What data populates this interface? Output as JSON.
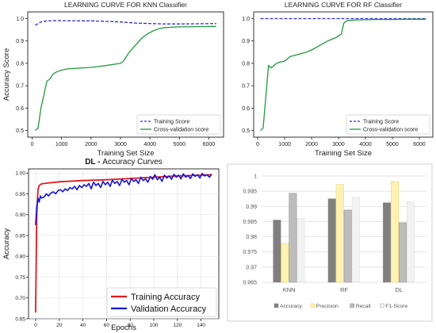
{
  "chart_data": [
    {
      "type": "line",
      "title": "LEARNING CURVE FOR KNN Classifier",
      "xlabel": "Training Set Size",
      "ylabel": "Accuracy Score",
      "xlim": [
        -150,
        6500
      ],
      "ylim": [
        0.47,
        1.03
      ],
      "xticks": [
        0,
        1000,
        2000,
        3000,
        4000,
        5000,
        6000
      ],
      "yticks": [
        0.5,
        0.6,
        0.7,
        0.8,
        0.9,
        1.0
      ],
      "ytick_labels": [
        "0.5",
        "0.6",
        "0.7",
        "0.8",
        "0.9",
        "1.0"
      ],
      "grid": false,
      "legend_position": "lower-right",
      "series": [
        {
          "name": "Training Score",
          "style": "dashed",
          "color": "#2f2fcf",
          "x": [
            100,
            300,
            500,
            800,
            1500,
            2000,
            2500,
            3000,
            3500,
            4000,
            4500,
            5000,
            5500,
            6250
          ],
          "y": [
            0.97,
            0.985,
            0.99,
            0.991,
            0.99,
            0.99,
            0.988,
            0.985,
            0.98,
            0.978,
            0.976,
            0.976,
            0.977,
            0.978
          ]
        },
        {
          "name": "Cross-validation score",
          "style": "solid",
          "color": "#1f9a3a",
          "x": [
            100,
            200,
            300,
            400,
            500,
            600,
            700,
            800,
            900,
            1000,
            1200,
            1500,
            2000,
            2500,
            3000,
            3100,
            3300,
            3500,
            3700,
            3900,
            4100,
            4300,
            4500,
            5000,
            5500,
            6250
          ],
          "y": [
            0.5,
            0.51,
            0.6,
            0.66,
            0.72,
            0.73,
            0.75,
            0.76,
            0.765,
            0.77,
            0.775,
            0.778,
            0.782,
            0.79,
            0.8,
            0.81,
            0.85,
            0.88,
            0.91,
            0.93,
            0.945,
            0.955,
            0.96,
            0.963,
            0.964,
            0.965
          ]
        }
      ]
    },
    {
      "type": "line",
      "title": "LEARNING CURVE FOR RF Classifier",
      "xlabel": "Training Set Size",
      "ylabel": "",
      "xlim": [
        -150,
        6500
      ],
      "ylim": [
        0.47,
        1.03
      ],
      "xticks": [
        0,
        1000,
        2000,
        3000,
        4000,
        5000,
        6000
      ],
      "yticks": [
        0.5,
        0.6,
        0.7,
        0.8,
        0.9,
        1.0
      ],
      "ytick_labels": [
        "0.5",
        "0.6",
        "0.7",
        "0.8",
        "0.9",
        "1.0"
      ],
      "grid": false,
      "legend_position": "lower-right",
      "series": [
        {
          "name": "Training Score",
          "style": "dashed",
          "color": "#2f2fcf",
          "x": [
            100,
            1000,
            2000,
            3000,
            4000,
            5000,
            6250
          ],
          "y": [
            1.0,
            1.0,
            1.0,
            1.0,
            1.0,
            1.0,
            1.0
          ]
        },
        {
          "name": "Cross-validation score",
          "style": "solid",
          "color": "#1f9a3a",
          "x": [
            100,
            200,
            300,
            400,
            500,
            600,
            700,
            800,
            1000,
            1200,
            1500,
            1800,
            2000,
            2300,
            2600,
            2900,
            3100,
            3200,
            3300,
            3500,
            4000,
            4500,
            5000,
            5500,
            6250
          ],
          "y": [
            0.5,
            0.51,
            0.65,
            0.79,
            0.78,
            0.79,
            0.8,
            0.805,
            0.81,
            0.83,
            0.84,
            0.85,
            0.86,
            0.88,
            0.9,
            0.915,
            0.93,
            0.98,
            0.99,
            0.993,
            0.995,
            0.996,
            0.996,
            0.997,
            0.997
          ]
        }
      ]
    },
    {
      "type": "line",
      "title_prefix": "DL -",
      "title": "Accuracy Curves",
      "xlabel": "Epochs",
      "ylabel": "Accuracy",
      "xlim": [
        -6,
        155
      ],
      "ylim": [
        0.65,
        1.01
      ],
      "xticks": [
        0,
        20,
        40,
        60,
        80,
        100,
        120,
        140
      ],
      "yticks": [
        0.65,
        0.7,
        0.75,
        0.8,
        0.85,
        0.9,
        0.95,
        1.0
      ],
      "ytick_labels": [
        "0.65",
        "0.70",
        "0.75",
        "0.80",
        "0.85",
        "0.90",
        "0.95",
        "1.00"
      ],
      "grid": true,
      "legend_position": "lower-right",
      "series": [
        {
          "name": "Training Accuracy",
          "color": "#e31a1c",
          "x": [
            0,
            1,
            2,
            3,
            5,
            10,
            20,
            40,
            60,
            80,
            100,
            120,
            140,
            149
          ],
          "y": [
            0.665,
            0.9,
            0.96,
            0.97,
            0.974,
            0.976,
            0.979,
            0.982,
            0.984,
            0.987,
            0.99,
            0.993,
            0.995,
            0.996
          ]
        },
        {
          "name": "Validation Accuracy",
          "color": "#1515d6",
          "x": [
            0,
            1,
            2,
            3,
            4,
            5,
            7,
            9,
            11,
            13,
            15,
            17,
            19,
            21,
            23,
            25,
            27,
            29,
            31,
            33,
            35,
            37,
            39,
            41,
            43,
            45,
            47,
            49,
            51,
            53,
            55,
            57,
            59,
            61,
            63,
            65,
            67,
            69,
            71,
            73,
            75,
            77,
            79,
            81,
            83,
            85,
            87,
            89,
            91,
            93,
            95,
            97,
            99,
            101,
            103,
            105,
            107,
            109,
            111,
            113,
            115,
            117,
            119,
            121,
            123,
            125,
            127,
            129,
            131,
            133,
            135,
            137,
            139,
            141,
            143,
            145,
            147,
            149
          ],
          "y": [
            0.875,
            0.92,
            0.94,
            0.93,
            0.945,
            0.94,
            0.942,
            0.95,
            0.945,
            0.952,
            0.955,
            0.95,
            0.958,
            0.96,
            0.955,
            0.962,
            0.958,
            0.965,
            0.962,
            0.968,
            0.96,
            0.97,
            0.965,
            0.972,
            0.968,
            0.975,
            0.962,
            0.978,
            0.97,
            0.975,
            0.965,
            0.98,
            0.972,
            0.978,
            0.968,
            0.983,
            0.975,
            0.98,
            0.97,
            0.985,
            0.978,
            0.982,
            0.972,
            0.987,
            0.98,
            0.984,
            0.975,
            0.99,
            0.982,
            0.986,
            0.978,
            0.992,
            0.985,
            0.996,
            0.984,
            0.99,
            0.98,
            0.995,
            0.988,
            0.993,
            0.985,
            0.997,
            0.99,
            0.995,
            0.986,
            0.998,
            0.99,
            0.994,
            0.987,
            0.998,
            0.992,
            0.996,
            0.988,
            0.999,
            0.993,
            0.996,
            0.99,
            0.997
          ]
        }
      ]
    },
    {
      "type": "bar",
      "title": "",
      "categories": [
        "KNN",
        "RF",
        "DL"
      ],
      "ylim": [
        0.965,
        1.0
      ],
      "yticks": [
        0.965,
        0.97,
        0.975,
        0.98,
        0.985,
        0.99,
        0.995,
        1.0
      ],
      "ytick_labels": [
        "0.965",
        "0.97",
        "0.975",
        "0.98",
        "0.985",
        "0.99",
        "0.995",
        "1"
      ],
      "grid": true,
      "legend_position": "bottom",
      "series": [
        {
          "name": "Accuracy",
          "color": "#7f7f7f",
          "values": [
            0.9855,
            0.9925,
            0.9912
          ]
        },
        {
          "name": "Precision",
          "color": "#fff2b3",
          "values": [
            0.9778,
            0.9972,
            0.9982
          ]
        },
        {
          "name": "Recall",
          "color": "#bdbdbd",
          "values": [
            0.9943,
            0.9888,
            0.9846
          ]
        },
        {
          "name": "F1-Score",
          "color": "#f2f2f2",
          "values": [
            0.986,
            0.993,
            0.9915
          ]
        }
      ]
    }
  ]
}
